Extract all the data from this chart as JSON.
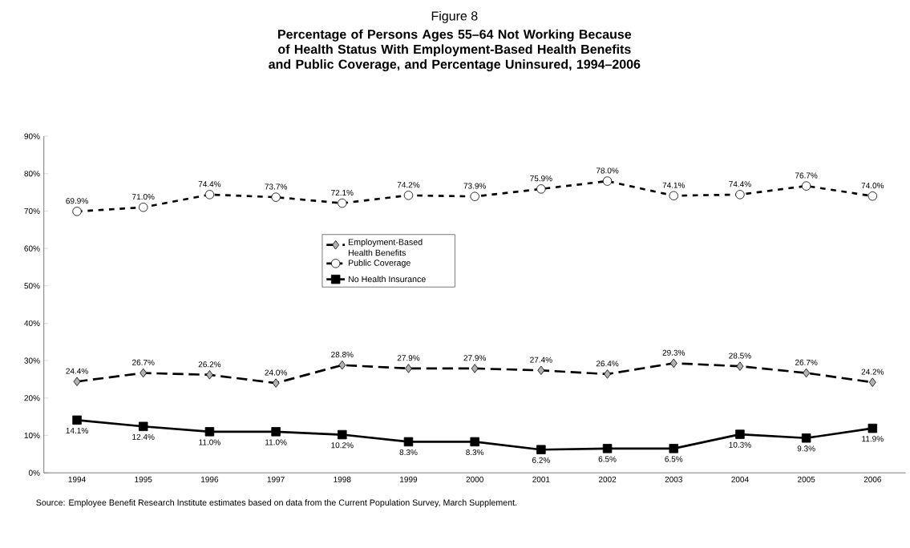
{
  "chart_data": {
    "type": "line",
    "title": "Figure 8",
    "subtitle": "Percentage of Persons Ages 55–64 Not Working Because of Health Status With Employment-Based Health Benefits and Public Coverage, and Percentage Uninsured, 1994–2006",
    "categories": [
      "1994",
      "1995",
      "1996",
      "1997",
      "1998",
      "1999",
      "2000",
      "2001",
      "2002",
      "2003",
      "2004",
      "2005",
      "2006"
    ],
    "series": [
      {
        "name": "Employment-Based Health Benefits",
        "color": "#000000",
        "marker": "diamond",
        "line_style": "dashed",
        "values": [
          24.4,
          26.7,
          26.2,
          24.0,
          28.8,
          27.9,
          27.9,
          27.4,
          26.4,
          29.3,
          28.5,
          26.7,
          24.2
        ],
        "value_labels": [
          "24.4%",
          "26.7%",
          "26.2%",
          "24.0%",
          "28.8%",
          "27.9%",
          "27.9%",
          "27.4%",
          "26.4%",
          "29.3%",
          "28.5%",
          "26.7%",
          "24.2%"
        ]
      },
      {
        "name": "Public Coverage",
        "color": "#000000",
        "marker": "circle",
        "line_style": "dotted",
        "values": [
          69.9,
          71.0,
          74.4,
          73.7,
          72.1,
          74.2,
          73.9,
          75.9,
          78.0,
          74.1,
          74.4,
          76.7,
          74.0
        ],
        "value_labels": [
          "69.9%",
          "71.0%",
          "74.4%",
          "73.7%",
          "72.1%",
          "74.2%",
          "73.9%",
          "75.9%",
          "78.0%",
          "74.1%",
          "74.4%",
          "76.7%",
          "74.0%"
        ]
      },
      {
        "name": "No Health Insurance",
        "color": "#000000",
        "marker": "square",
        "line_style": "solid",
        "values": [
          14.1,
          12.4,
          11.0,
          11.0,
          10.2,
          8.3,
          8.3,
          6.2,
          6.5,
          6.5,
          10.3,
          9.3,
          11.9
        ],
        "value_labels": [
          "14.1%",
          "12.4%",
          "11.0%",
          "11.0%",
          "10.2%",
          "8.3%",
          "8.3%",
          "6.2%",
          "6.5%",
          "6.5%",
          "10.3%",
          "9.3%",
          "11.9%"
        ]
      }
    ],
    "ylim": [
      0,
      90
    ],
    "yticks": [
      {
        "value": 0,
        "label": "0%"
      },
      {
        "value": 10,
        "label": "10%"
      },
      {
        "value": 20,
        "label": "20%"
      },
      {
        "value": 30,
        "label": "30%"
      },
      {
        "value": 40,
        "label": "40%"
      },
      {
        "value": 50,
        "label": "50%"
      },
      {
        "value": 60,
        "label": "60%"
      },
      {
        "value": 70,
        "label": "70%"
      },
      {
        "value": 80,
        "label": "80%"
      },
      {
        "value": 90,
        "label": "90%"
      }
    ],
    "legend": "center",
    "grid": false,
    "annotations": [
      "Source: Employee Benefit Research Institute estimates based on data from the Current Population Survey, March Supplement."
    ]
  }
}
